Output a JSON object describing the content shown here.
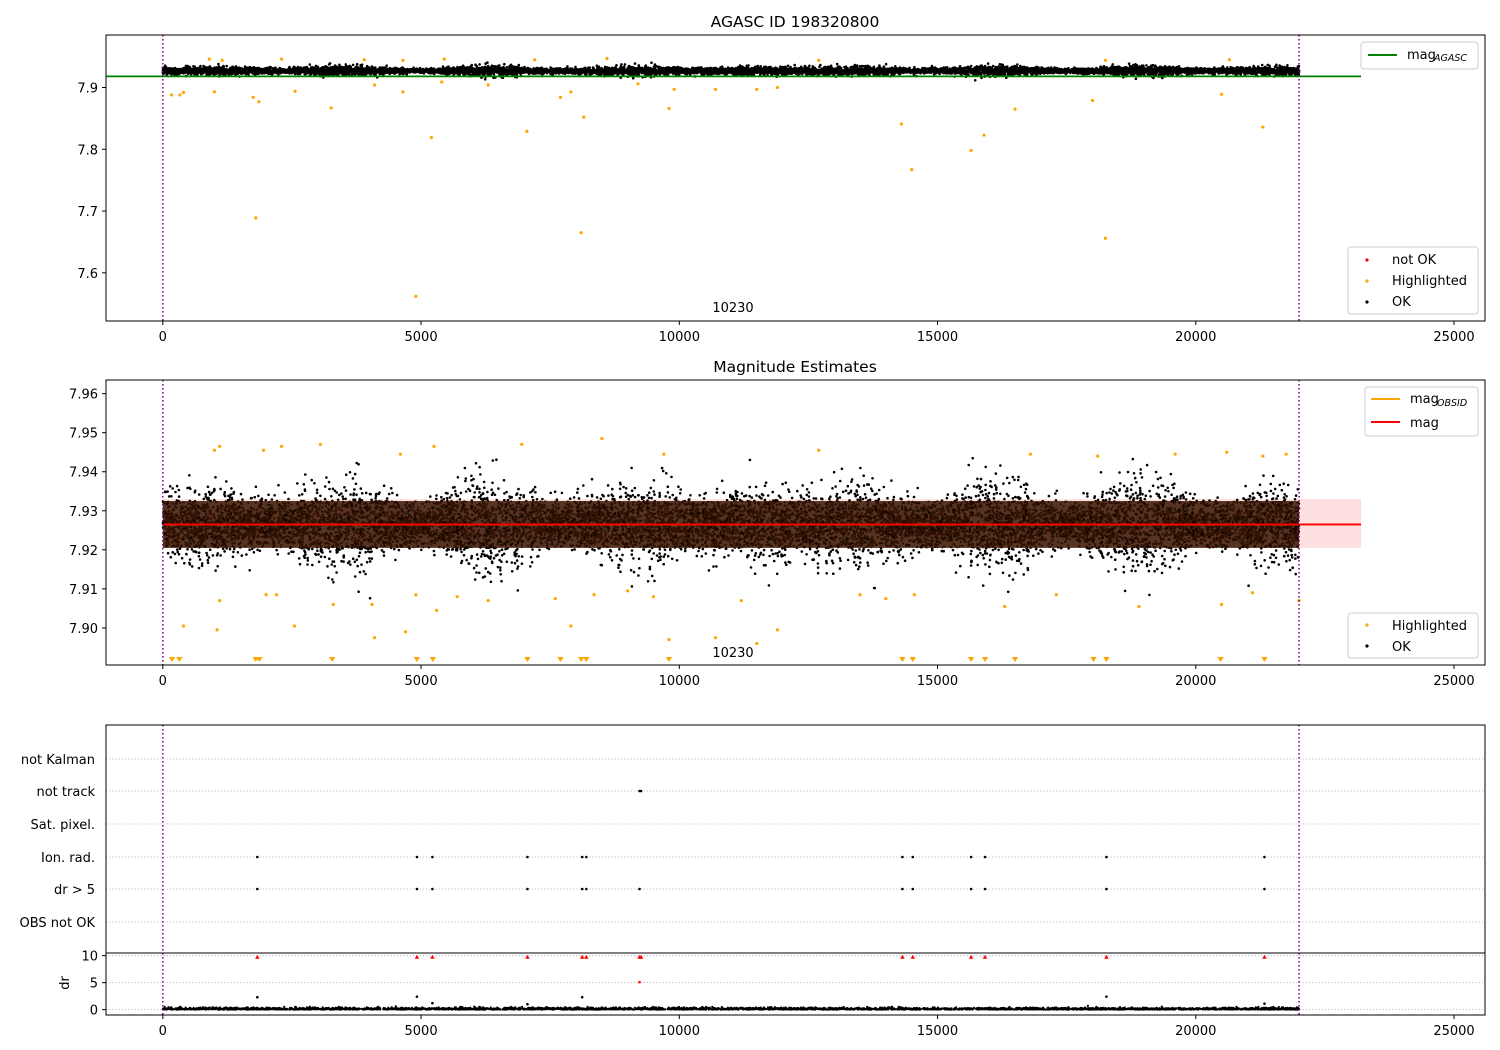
{
  "chart_data": [
    {
      "type": "scatter",
      "title": "AGASC ID 198320800",
      "xlim": [
        -1100,
        25600
      ],
      "ylim": [
        7.522,
        7.985
      ],
      "xticks": [
        0,
        5000,
        10000,
        15000,
        20000,
        25000
      ],
      "yticks": [
        7.6,
        7.7,
        7.8,
        7.9
      ],
      "annotation": "10230",
      "vlines": [
        0,
        22000
      ],
      "legend_upper": [
        {
          "label": "mag",
          "sub": "AGASC",
          "color": "#008000"
        }
      ],
      "legend_lower": [
        {
          "label": "not OK",
          "color": "#ff0000"
        },
        {
          "label": "Highlighted",
          "color": "#ffa500"
        },
        {
          "label": "OK",
          "color": "#000000"
        }
      ],
      "mag_agasc": 7.918,
      "ok_band": {
        "center": 7.927,
        "spread": 0.0085,
        "x_start": 0,
        "x_end": 22000
      },
      "highlighted_points": [
        [
          170,
          7.888
        ],
        [
          330,
          7.888
        ],
        [
          400,
          7.892
        ],
        [
          1000,
          7.893
        ],
        [
          1750,
          7.884
        ],
        [
          1800,
          7.689
        ],
        [
          1860,
          7.877
        ],
        [
          2560,
          7.894
        ],
        [
          3260,
          7.867
        ],
        [
          4100,
          7.904
        ],
        [
          4650,
          7.893
        ],
        [
          4900,
          7.562
        ],
        [
          5200,
          7.819
        ],
        [
          5400,
          7.909
        ],
        [
          6300,
          7.904
        ],
        [
          7050,
          7.829
        ],
        [
          7700,
          7.884
        ],
        [
          7900,
          7.893
        ],
        [
          8100,
          7.665
        ],
        [
          8150,
          7.852
        ],
        [
          9200,
          7.906
        ],
        [
          9800,
          7.866
        ],
        [
          9900,
          7.897
        ],
        [
          10700,
          7.897
        ],
        [
          11500,
          7.897
        ],
        [
          11900,
          7.9
        ],
        [
          14300,
          7.841
        ],
        [
          14500,
          7.767
        ],
        [
          15650,
          7.798
        ],
        [
          15900,
          7.823
        ],
        [
          16500,
          7.865
        ],
        [
          18000,
          7.879
        ],
        [
          18250,
          7.656
        ],
        [
          20500,
          7.889
        ],
        [
          21300,
          7.836
        ]
      ]
    },
    {
      "type": "scatter",
      "title": "Magnitude Estimates",
      "xlim": [
        -1100,
        25600
      ],
      "ylim": [
        7.8905,
        7.9635
      ],
      "xticks": [
        0,
        5000,
        10000,
        15000,
        20000,
        25000
      ],
      "yticks": [
        7.9,
        7.91,
        7.92,
        7.93,
        7.94,
        7.95,
        7.96
      ],
      "annotation": "10230",
      "vlines": [
        0,
        22000
      ],
      "legend_upper": [
        {
          "label": "mag",
          "sub": "OBSID",
          "color": "#ffa500"
        },
        {
          "label": "mag",
          "sub": "",
          "color": "#ff0000"
        }
      ],
      "legend_lower": [
        {
          "label": "Highlighted",
          "color": "#ffa500"
        },
        {
          "label": "OK",
          "color": "#000000"
        }
      ],
      "mag_obsid": 7.9265,
      "mag": 7.9265,
      "band": [
        7.9205,
        7.933
      ],
      "inner_band": [
        7.9205,
        7.9325
      ],
      "ok_band": {
        "center": 7.9265,
        "spread": 0.0085,
        "x_start": 0,
        "x_end": 22000
      },
      "highlighted_points": [
        [
          1000,
          7.9455
        ],
        [
          1100,
          7.9465
        ],
        [
          1950,
          7.9455
        ],
        [
          2300,
          7.9465
        ],
        [
          3050,
          7.947
        ],
        [
          4600,
          7.9445
        ],
        [
          5250,
          7.9465
        ],
        [
          6950,
          7.947
        ],
        [
          8500,
          7.9485
        ],
        [
          9700,
          7.9445
        ],
        [
          12700,
          7.9455
        ],
        [
          16800,
          7.9445
        ],
        [
          18100,
          7.944
        ],
        [
          19600,
          7.9445
        ],
        [
          20600,
          7.945
        ],
        [
          21300,
          7.944
        ],
        [
          21750,
          7.9445
        ],
        [
          1100,
          7.907
        ],
        [
          2000,
          7.9085
        ],
        [
          2200,
          7.9085
        ],
        [
          3300,
          7.906
        ],
        [
          4050,
          7.906
        ],
        [
          4900,
          7.9085
        ],
        [
          5300,
          7.9045
        ],
        [
          5700,
          7.908
        ],
        [
          6300,
          7.907
        ],
        [
          7600,
          7.9075
        ],
        [
          8350,
          7.9085
        ],
        [
          9000,
          7.9095
        ],
        [
          9500,
          7.908
        ],
        [
          11200,
          7.907
        ],
        [
          13500,
          7.9085
        ],
        [
          14000,
          7.9075
        ],
        [
          14550,
          7.9085
        ],
        [
          16300,
          7.9055
        ],
        [
          17300,
          7.9085
        ],
        [
          18900,
          7.9055
        ],
        [
          20500,
          7.906
        ],
        [
          21100,
          7.909
        ],
        [
          22000,
          7.907
        ],
        [
          400,
          7.9005
        ],
        [
          1050,
          7.8995
        ],
        [
          2550,
          7.9005
        ],
        [
          4100,
          7.8975
        ],
        [
          4700,
          7.899
        ],
        [
          7900,
          7.9005
        ],
        [
          9800,
          7.897
        ],
        [
          10700,
          7.8975
        ],
        [
          11500,
          7.896
        ],
        [
          11900,
          7.8995
        ]
      ],
      "below_range_markers": [
        180,
        320,
        1800,
        1870,
        3280,
        4920,
        5230,
        7060,
        7700,
        8100,
        8200,
        9800,
        14320,
        14520,
        15650,
        15920,
        16500,
        18020,
        18270,
        20480,
        21330
      ]
    },
    {
      "type": "scatter",
      "title": "",
      "xlim": [
        -1100,
        25600
      ],
      "xticks": [
        0,
        5000,
        10000,
        15000,
        20000,
        25000
      ],
      "vlines": [
        0,
        22000
      ],
      "flag_rows": [
        "not Kalman",
        "not track",
        "Sat. pixel.",
        "Ion. rad.",
        "dr > 5",
        "OBS not OK"
      ],
      "flag_points": {
        "not track": [
          9230,
          9260
        ],
        "Ion. rad.": [
          1830,
          4920,
          5220,
          7060,
          8120,
          8200,
          14320,
          14520,
          15650,
          15920,
          18270,
          21330
        ],
        "dr > 5": [
          1830,
          4920,
          5220,
          7060,
          8120,
          8200,
          9230,
          14320,
          14520,
          15650,
          15920,
          18270,
          21330
        ]
      },
      "dr_ylabel": "dr",
      "dr_ylim": [
        -1,
        10.5
      ],
      "dr_yticks": [
        0,
        5,
        10
      ],
      "dr_clipped_points": [
        1830,
        4920,
        5220,
        7060,
        8120,
        8200,
        9230,
        9260,
        14320,
        14520,
        15650,
        15920,
        18270,
        21330
      ],
      "dr_mid_points": [
        [
          1830,
          2.3,
          "#000000"
        ],
        [
          4920,
          2.4,
          "#000000"
        ],
        [
          8120,
          2.3,
          "#000000"
        ],
        [
          9230,
          5.1,
          "#ff0000"
        ],
        [
          18270,
          2.4,
          "#000000"
        ],
        [
          5220,
          1.2,
          "#000000"
        ],
        [
          7060,
          1.0,
          "#000000"
        ],
        [
          21330,
          1.1,
          "#000000"
        ]
      ]
    }
  ]
}
